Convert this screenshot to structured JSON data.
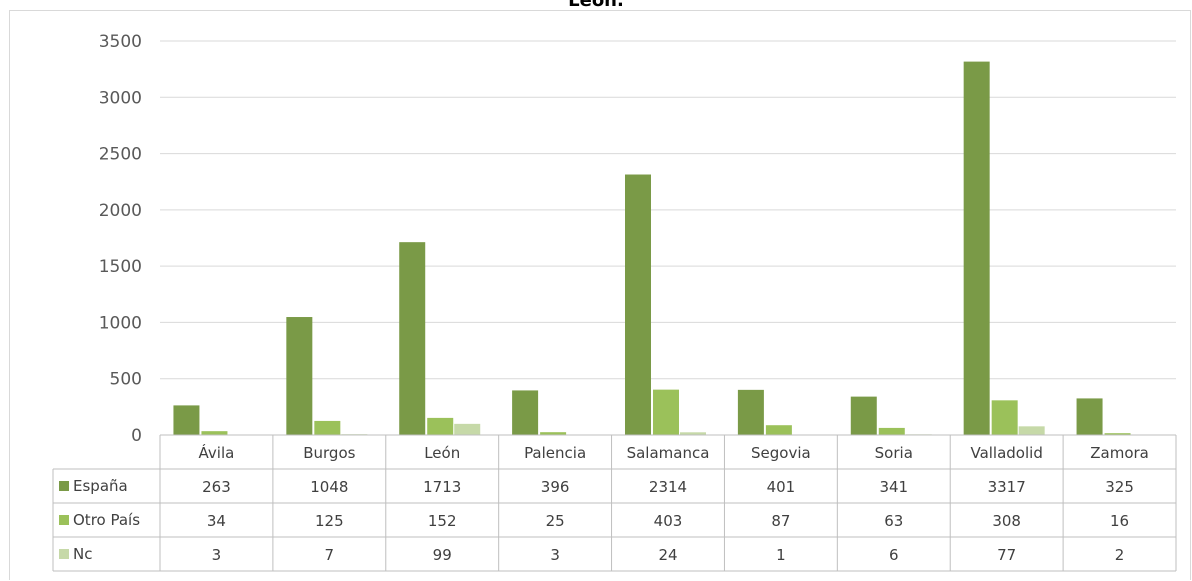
{
  "chart_data": {
    "type": "bar",
    "title": "León.",
    "categories": [
      "Ávila",
      "Burgos",
      "León",
      "Palencia",
      "Salamanca",
      "Segovia",
      "Soria",
      "Valladolid",
      "Zamora"
    ],
    "series": [
      {
        "name": "España",
        "color": "#7a9a47",
        "values": [
          263,
          1048,
          1713,
          396,
          2314,
          401,
          341,
          3317,
          325
        ]
      },
      {
        "name": "Otro País",
        "color": "#9bc15a",
        "values": [
          34,
          125,
          152,
          25,
          403,
          87,
          63,
          308,
          16
        ]
      },
      {
        "name": "Nc",
        "color": "#c6d9a8",
        "values": [
          3,
          7,
          99,
          3,
          24,
          1,
          6,
          77,
          2
        ]
      }
    ],
    "ylim": [
      0,
      3500
    ],
    "yticks": [
      "0",
      "500",
      "1000",
      "1500",
      "2000",
      "2500",
      "3000",
      "3500"
    ],
    "grid": true,
    "legend": "data-table"
  }
}
